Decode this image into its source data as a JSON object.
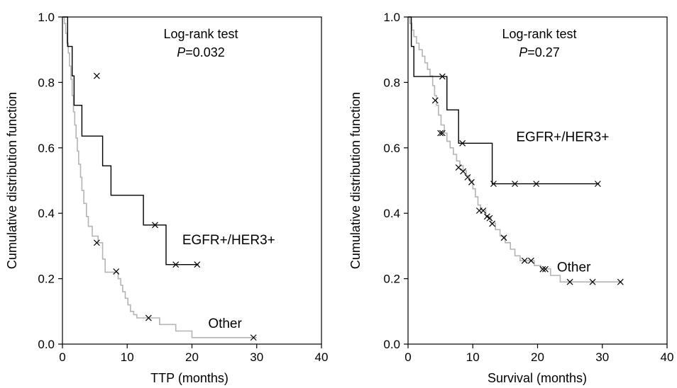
{
  "chart_data": [
    {
      "type": "line",
      "subtype": "kaplan-meier step",
      "xlabel": "TTP (months)",
      "ylabel": "Cumulative distribution function",
      "xlim": [
        0,
        40
      ],
      "ylim": [
        0,
        1.0
      ],
      "xticks": [
        0,
        10,
        20,
        30,
        40
      ],
      "yticks": [
        "0.0",
        "0.2",
        "0.4",
        "0.6",
        "0.8",
        "1.0"
      ],
      "grid": false,
      "annotation": {
        "line1": "Log-rank test",
        "p_symbol": "P",
        "p_value": "=0.032"
      },
      "series": [
        {
          "name": "EGFR+/HER3+",
          "color": "#000000",
          "steps": [
            [
              0,
              1.0
            ],
            [
              0.8,
              0.91
            ],
            [
              1.5,
              0.82
            ],
            [
              1.8,
              0.73
            ],
            [
              3.0,
              0.636
            ],
            [
              6.2,
              0.545
            ],
            [
              7.5,
              0.455
            ],
            [
              12.5,
              0.364
            ],
            [
              16.0,
              0.243
            ],
            [
              21.0,
              0.243
            ]
          ],
          "censored": [
            [
              5.3,
              0.82
            ],
            [
              14.3,
              0.364
            ],
            [
              17.5,
              0.243
            ],
            [
              20.8,
              0.243
            ]
          ]
        },
        {
          "name": "Other",
          "color": "#b4b4b4",
          "steps": [
            [
              0,
              1.0
            ],
            [
              0.3,
              0.98
            ],
            [
              0.5,
              0.95
            ],
            [
              0.7,
              0.92
            ],
            [
              0.9,
              0.89
            ],
            [
              1.1,
              0.85
            ],
            [
              1.3,
              0.81
            ],
            [
              1.5,
              0.76
            ],
            [
              1.7,
              0.71
            ],
            [
              1.9,
              0.67
            ],
            [
              2.1,
              0.63
            ],
            [
              2.3,
              0.59
            ],
            [
              2.5,
              0.55
            ],
            [
              2.8,
              0.51
            ],
            [
              3.0,
              0.47
            ],
            [
              3.3,
              0.43
            ],
            [
              3.7,
              0.39
            ],
            [
              4.0,
              0.36
            ],
            [
              4.6,
              0.33
            ],
            [
              5.5,
              0.31
            ],
            [
              6.2,
              0.26
            ],
            [
              6.6,
              0.22
            ],
            [
              8.6,
              0.2
            ],
            [
              9.0,
              0.18
            ],
            [
              9.3,
              0.16
            ],
            [
              9.7,
              0.14
            ],
            [
              10.1,
              0.12
            ],
            [
              10.5,
              0.1
            ],
            [
              11.0,
              0.09
            ],
            [
              11.5,
              0.08
            ],
            [
              15.0,
              0.06
            ],
            [
              17.5,
              0.04
            ],
            [
              20.0,
              0.02
            ],
            [
              30.0,
              0.02
            ]
          ],
          "censored": [
            [
              5.3,
              0.31
            ],
            [
              8.3,
              0.222
            ],
            [
              13.3,
              0.08
            ],
            [
              29.5,
              0.02
            ]
          ]
        }
      ],
      "series_labels": [
        {
          "text": "EGFR+/HER3+",
          "x": 18.5,
          "y": 0.305
        },
        {
          "text": "Other",
          "x": 22.5,
          "y": 0.05
        }
      ]
    },
    {
      "type": "line",
      "subtype": "kaplan-meier step",
      "xlabel": "Survival (months)",
      "ylabel": "Cumulative distribution function",
      "xlim": [
        0,
        40
      ],
      "ylim": [
        0,
        1.0
      ],
      "xticks": [
        0,
        10,
        20,
        30,
        40
      ],
      "yticks": [
        "0.0",
        "0.2",
        "0.4",
        "0.6",
        "0.8",
        "1.0"
      ],
      "grid": false,
      "annotation": {
        "line1": "Log-rank test",
        "p_symbol": "P",
        "p_value": "=0.27"
      },
      "series": [
        {
          "name": "EGFR+/HER3+",
          "color": "#000000",
          "steps": [
            [
              0,
              1.0
            ],
            [
              0.5,
              0.91
            ],
            [
              0.9,
              0.818
            ],
            [
              6.0,
              0.716
            ],
            [
              7.8,
              0.614
            ],
            [
              13.0,
              0.49
            ],
            [
              29.5,
              0.49
            ]
          ],
          "censored": [
            [
              5.3,
              0.818
            ],
            [
              8.4,
              0.614
            ],
            [
              13.2,
              0.49
            ],
            [
              16.5,
              0.49
            ],
            [
              19.8,
              0.49
            ],
            [
              29.3,
              0.49
            ]
          ]
        },
        {
          "name": "Other",
          "color": "#b4b4b4",
          "steps": [
            [
              0,
              1.0
            ],
            [
              0.3,
              0.98
            ],
            [
              0.6,
              0.96
            ],
            [
              0.9,
              0.94
            ],
            [
              1.3,
              0.92
            ],
            [
              1.7,
              0.9
            ],
            [
              2.2,
              0.88
            ],
            [
              2.6,
              0.86
            ],
            [
              3.0,
              0.84
            ],
            [
              3.4,
              0.82
            ],
            [
              3.8,
              0.79
            ],
            [
              4.1,
              0.76
            ],
            [
              4.4,
              0.73
            ],
            [
              4.7,
              0.7
            ],
            [
              5.1,
              0.67
            ],
            [
              5.6,
              0.645
            ],
            [
              6.0,
              0.62
            ],
            [
              6.5,
              0.6
            ],
            [
              7.0,
              0.58
            ],
            [
              7.5,
              0.56
            ],
            [
              8.0,
              0.545
            ],
            [
              8.5,
              0.53
            ],
            [
              9.0,
              0.515
            ],
            [
              9.5,
              0.5
            ],
            [
              10.0,
              0.475
            ],
            [
              10.4,
              0.45
            ],
            [
              10.8,
              0.425
            ],
            [
              11.2,
              0.41
            ],
            [
              12.0,
              0.39
            ],
            [
              12.8,
              0.37
            ],
            [
              13.5,
              0.35
            ],
            [
              14.2,
              0.33
            ],
            [
              15.0,
              0.31
            ],
            [
              15.8,
              0.29
            ],
            [
              16.5,
              0.27
            ],
            [
              17.3,
              0.255
            ],
            [
              19.5,
              0.24
            ],
            [
              20.5,
              0.23
            ],
            [
              22.0,
              0.21
            ],
            [
              23.5,
              0.19
            ],
            [
              33.0,
              0.19
            ]
          ],
          "censored": [
            [
              4.2,
              0.745
            ],
            [
              5.0,
              0.645
            ],
            [
              5.3,
              0.645
            ],
            [
              7.8,
              0.54
            ],
            [
              8.5,
              0.528
            ],
            [
              9.2,
              0.51
            ],
            [
              9.8,
              0.495
            ],
            [
              11.0,
              0.408
            ],
            [
              11.6,
              0.408
            ],
            [
              12.2,
              0.39
            ],
            [
              12.6,
              0.385
            ],
            [
              13.0,
              0.368
            ],
            [
              14.8,
              0.325
            ],
            [
              18.0,
              0.255
            ],
            [
              19.0,
              0.255
            ],
            [
              20.8,
              0.229
            ],
            [
              21.2,
              0.229
            ],
            [
              25.0,
              0.19
            ],
            [
              28.5,
              0.19
            ],
            [
              32.8,
              0.19
            ]
          ]
        }
      ],
      "series_labels": [
        {
          "text": "EGFR+/HER3+",
          "x": 16.7,
          "y": 0.62
        },
        {
          "text": "Other",
          "x": 23.0,
          "y": 0.222
        }
      ]
    }
  ]
}
